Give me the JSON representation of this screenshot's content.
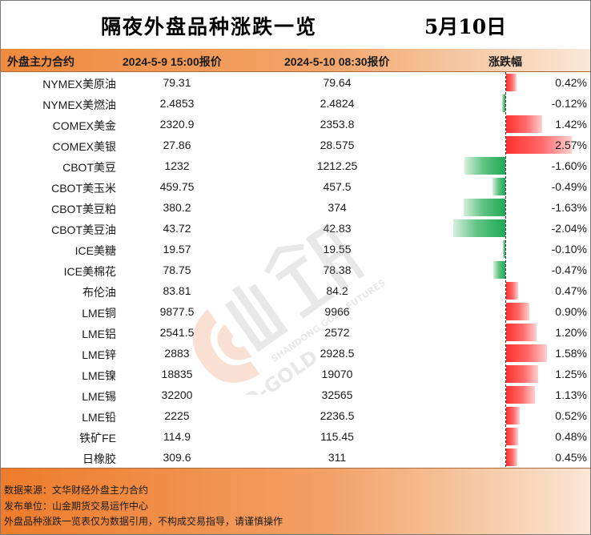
{
  "title": "隔夜外盘品种涨跌一览",
  "date": "5月10日",
  "headers": {
    "name": "外盘主力合约",
    "price1": "2024-5-9 15:00报价",
    "price2": "2024-5-10 08:30报价",
    "change": "涨跌幅"
  },
  "colors": {
    "up": "#ff3030",
    "down": "#1faa55",
    "accent": "#f08a3c"
  },
  "rows": [
    {
      "name": "NYMEX美原油",
      "p1": "79.31",
      "p2": "79.64",
      "pct": "0.42%",
      "value": 0.42
    },
    {
      "name": "NYMEX美燃油",
      "p1": "2.4853",
      "p2": "2.4824",
      "pct": "-0.12%",
      "value": -0.12
    },
    {
      "name": "COMEX美金",
      "p1": "2320.9",
      "p2": "2353.8",
      "pct": "1.42%",
      "value": 1.42
    },
    {
      "name": "COMEX美银",
      "p1": "27.86",
      "p2": "28.575",
      "pct": "2.57%",
      "value": 2.57
    },
    {
      "name": "CBOT美豆",
      "p1": "1232",
      "p2": "1212.25",
      "pct": "-1.60%",
      "value": -1.6
    },
    {
      "name": "CBOT美玉米",
      "p1": "459.75",
      "p2": "457.5",
      "pct": "-0.49%",
      "value": -0.49
    },
    {
      "name": "CBOT美豆粕",
      "p1": "380.2",
      "p2": "374",
      "pct": "-1.63%",
      "value": -1.63
    },
    {
      "name": "CBOT美豆油",
      "p1": "43.72",
      "p2": "42.83",
      "pct": "-2.04%",
      "value": -2.04
    },
    {
      "name": "ICE美糖",
      "p1": "19.57",
      "p2": "19.55",
      "pct": "-0.10%",
      "value": -0.1
    },
    {
      "name": "ICE美棉花",
      "p1": "78.75",
      "p2": "78.38",
      "pct": "-0.47%",
      "value": -0.47
    },
    {
      "name": "布伦油",
      "p1": "83.81",
      "p2": "84.2",
      "pct": "0.47%",
      "value": 0.47
    },
    {
      "name": "LME铜",
      "p1": "9877.5",
      "p2": "9966",
      "pct": "0.90%",
      "value": 0.9
    },
    {
      "name": "LME铝",
      "p1": "2541.5",
      "p2": "2572",
      "pct": "1.20%",
      "value": 1.2
    },
    {
      "name": "LME锌",
      "p1": "2883",
      "p2": "2928.5",
      "pct": "1.58%",
      "value": 1.58
    },
    {
      "name": "LME镍",
      "p1": "18835",
      "p2": "19070",
      "pct": "1.25%",
      "value": 1.25
    },
    {
      "name": "LME锡",
      "p1": "32200",
      "p2": "32565",
      "pct": "1.13%",
      "value": 1.13
    },
    {
      "name": "LME铅",
      "p1": "2225",
      "p2": "2236.5",
      "pct": "0.52%",
      "value": 0.52
    },
    {
      "name": "铁矿FE",
      "p1": "114.9",
      "p2": "115.45",
      "pct": "0.48%",
      "value": 0.48
    },
    {
      "name": "日橡胶",
      "p1": "309.6",
      "p2": "311",
      "pct": "0.45%",
      "value": 0.45
    }
  ],
  "footer": {
    "source": "数据来源：文华财经外盘主力合约",
    "publisher": "发布单位：山金期货交易运作中心",
    "disclaimer": "外盘品种涨跌一览表仅为数据引用，不构成交易指导，请谨慎操作"
  },
  "watermark": {
    "logo_text": "山金期货",
    "sub_text": "SHANDONG GOLD FUTURES",
    "brand": "SD-GOLD"
  }
}
